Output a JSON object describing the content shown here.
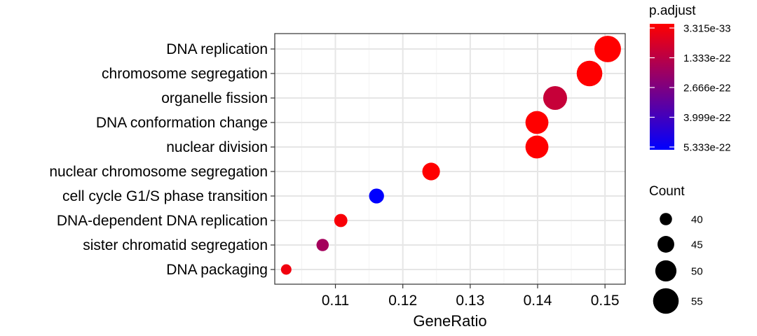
{
  "chart_data": {
    "type": "scatter",
    "xlabel": "GeneRatio",
    "ylabel": "",
    "xlim": [
      0.101,
      0.153
    ],
    "x_ticks": [
      "0.11",
      "0.12",
      "0.13",
      "0.14",
      "0.15"
    ],
    "x_tick_values": [
      0.11,
      0.12,
      0.13,
      0.14,
      0.15
    ],
    "grid": true,
    "categories": [
      "DNA replication",
      "chromosome segregation",
      "organelle fission",
      "DNA conformation change",
      "nuclear division",
      "nuclear chromosome segregation",
      "cell cycle G1/S phase transition",
      "DNA-dependent DNA replication",
      "sister chromatid segregation",
      "DNA packaging"
    ],
    "points": [
      {
        "category": "DNA replication",
        "x": 0.1504,
        "count": 56,
        "p_adjust": 3.3e-33
      },
      {
        "category": "chromosome segregation",
        "x": 0.1477,
        "count": 55,
        "p_adjust": 1e-24
      },
      {
        "category": "organelle fission",
        "x": 0.1426,
        "count": 53,
        "p_adjust": 1.2e-22
      },
      {
        "category": "DNA conformation change",
        "x": 0.1399,
        "count": 52,
        "p_adjust": 2e-26
      },
      {
        "category": "nuclear division",
        "x": 0.1399,
        "count": 52,
        "p_adjust": 3e-26
      },
      {
        "category": "nuclear chromosome segregation",
        "x": 0.1242,
        "count": 46,
        "p_adjust": 5e-27
      },
      {
        "category": "cell cycle G1/S phase transition",
        "x": 0.1161,
        "count": 43,
        "p_adjust": 5.333e-22
      },
      {
        "category": "DNA-dependent DNA replication",
        "x": 0.1108,
        "count": 41,
        "p_adjust": 1.5e-23
      },
      {
        "category": "sister chromatid segregation",
        "x": 0.1081,
        "count": 40,
        "p_adjust": 1.9e-22
      },
      {
        "category": "DNA packaging",
        "x": 0.1027,
        "count": 38,
        "p_adjust": 3e-23
      }
    ],
    "color_legend": {
      "title": "p.adjust",
      "labels": [
        "3.315e-33",
        "1.333e-22",
        "2.666e-22",
        "3.999e-22",
        "5.333e-22"
      ],
      "values": [
        3.315e-33,
        1.333e-22,
        2.666e-22,
        3.999e-22,
        5.333e-22
      ],
      "low_color": "#ff0000",
      "high_color": "#0000ff"
    },
    "size_legend": {
      "title": "Count",
      "values": [
        40,
        45,
        50,
        55
      ],
      "labels": [
        "40",
        "45",
        "50",
        "55"
      ]
    },
    "size_range": [
      38,
      56
    ],
    "legend_position": "right"
  }
}
